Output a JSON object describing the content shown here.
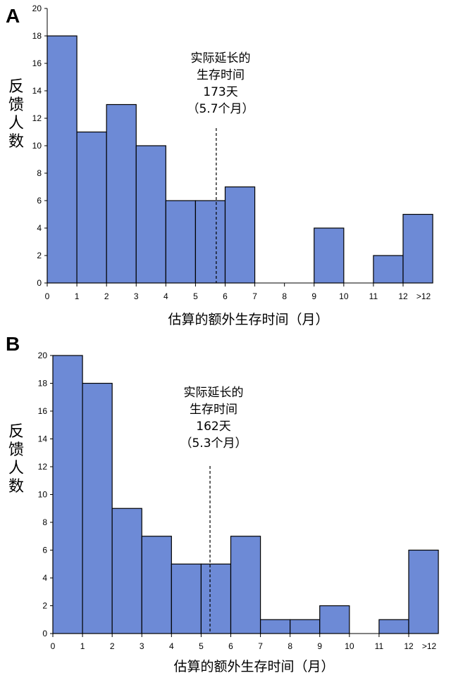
{
  "chart_data": [
    {
      "type": "bar",
      "panel": "A",
      "ylabel": "反馈人数",
      "xlabel": "估算的额外生存时间（月）",
      "x_ticks": [
        "0",
        "1",
        "2",
        "3",
        "4",
        "5",
        "6",
        "7",
        "8",
        "9",
        "10",
        "11",
        "12",
        ">12"
      ],
      "y_ticks": [
        "0",
        "2",
        "4",
        "6",
        "8",
        "10",
        "12",
        "14",
        "16",
        "18",
        "20"
      ],
      "ylim": [
        0,
        20
      ],
      "bins": [
        {
          "x0": 0,
          "x1": 1,
          "value": 18
        },
        {
          "x0": 1,
          "x1": 2,
          "value": 11
        },
        {
          "x0": 2,
          "x1": 3,
          "value": 13
        },
        {
          "x0": 3,
          "x1": 4,
          "value": 10
        },
        {
          "x0": 4,
          "x1": 5,
          "value": 6
        },
        {
          "x0": 5,
          "x1": 6,
          "value": 6
        },
        {
          "x0": 6,
          "x1": 7,
          "value": 7
        },
        {
          "x0": 7,
          "x1": 8,
          "value": 0
        },
        {
          "x0": 8,
          "x1": 9,
          "value": 0
        },
        {
          "x0": 9,
          "x1": 10,
          "value": 4
        },
        {
          "x0": 10,
          "x1": 11,
          "value": 0
        },
        {
          "x0": 11,
          "x1": 12,
          "value": 2
        },
        {
          "x0": 12,
          "x1": 13,
          "value": 5
        }
      ],
      "reference_x": 5.7,
      "annotation": [
        "实际延长的",
        "生存时间",
        "173天",
        "（5.7个月）"
      ]
    },
    {
      "type": "bar",
      "panel": "B",
      "ylabel": "反馈人数",
      "xlabel": "估算的额外生存时间（月）",
      "x_ticks": [
        "0",
        "1",
        "2",
        "3",
        "4",
        "5",
        "6",
        "7",
        "8",
        "9",
        "10",
        "11",
        "12",
        ">12"
      ],
      "y_ticks": [
        "0",
        "2",
        "4",
        "6",
        "8",
        "10",
        "12",
        "14",
        "16",
        "18",
        "20"
      ],
      "ylim": [
        0,
        20
      ],
      "bins": [
        {
          "x0": 0,
          "x1": 1,
          "value": 20
        },
        {
          "x0": 1,
          "x1": 2,
          "value": 18
        },
        {
          "x0": 2,
          "x1": 3,
          "value": 9
        },
        {
          "x0": 3,
          "x1": 4,
          "value": 7
        },
        {
          "x0": 4,
          "x1": 5,
          "value": 5
        },
        {
          "x0": 5,
          "x1": 6,
          "value": 5
        },
        {
          "x0": 6,
          "x1": 7,
          "value": 7
        },
        {
          "x0": 7,
          "x1": 8,
          "value": 1
        },
        {
          "x0": 8,
          "x1": 9,
          "value": 1
        },
        {
          "x0": 9,
          "x1": 10,
          "value": 2
        },
        {
          "x0": 10,
          "x1": 11,
          "value": 0
        },
        {
          "x0": 11,
          "x1": 12,
          "value": 1
        },
        {
          "x0": 12,
          "x1": 13,
          "value": 6
        }
      ],
      "reference_x": 5.3,
      "annotation": [
        "实际延长的",
        "生存时间",
        "162天",
        "（5.3个月）"
      ]
    }
  ],
  "colors": {
    "bar": "#6d8ad6"
  }
}
